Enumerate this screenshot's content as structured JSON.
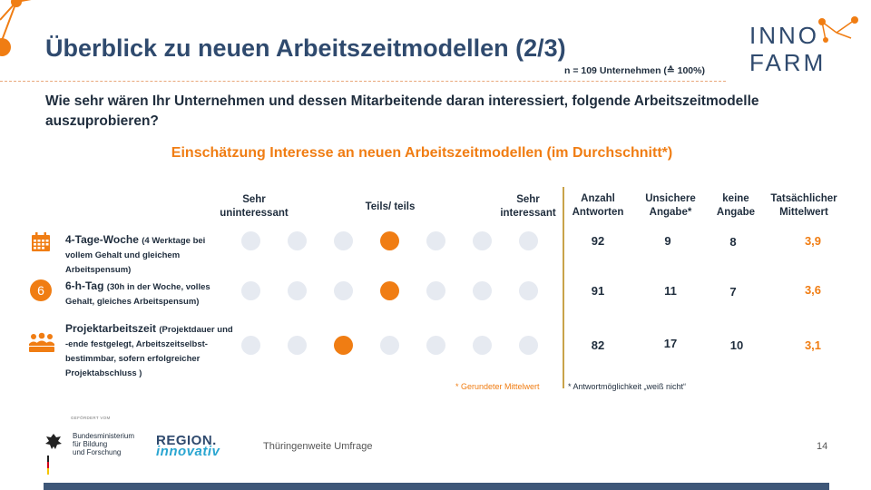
{
  "title": "Überblick zu neuen Arbeitszeitmodellen (2/3)",
  "sample": "n = 109 Unternehmen (≙ 100%)",
  "question": "Wie sehr wären Ihr Unternehmen und dessen Mitarbeitende daran interessiert, folgende Arbeitszeitmodelle auszuprobieren?",
  "subtitle": "Einschätzung Interesse an neuen Arbeitszeitmodellen (im Durchschnitt*)",
  "scale": {
    "left_line1": "Sehr",
    "left_line2": "uninteressant",
    "middle": "Teils/ teils",
    "right_line1": "Sehr",
    "right_line2": "interessant",
    "points": 7
  },
  "columns": {
    "anzahl_line1": "Anzahl",
    "anzahl_line2": "Antworten",
    "unsicher_line1": "Unsichere",
    "unsicher_line2": "Angabe*",
    "keine_line1": "keine",
    "keine_line2": "Angabe",
    "mittel_line1": "Tatsächlicher",
    "mittel_line2": "Mittelwert"
  },
  "rows": [
    {
      "icon": "calendar-icon",
      "name": "4-Tage-Woche",
      "detail_line1": "(4 Werktage bei",
      "detail_line2": "vollem Gehalt und gleichem",
      "detail_line3": "Arbeitspensum)",
      "selected_point": 4,
      "anzahl": "92",
      "unsicher": "9",
      "keine": "8",
      "mittelwert": "3,9"
    },
    {
      "icon": "number-six-icon",
      "icon_text": "6",
      "name": "6-h-Tag",
      "detail_line1": "(30h in der Woche, volles",
      "detail_line2": "Gehalt, gleiches Arbeitspensum)",
      "selected_point": 4,
      "anzahl": "91",
      "unsicher": "11",
      "keine": "7",
      "mittelwert": "3,6"
    },
    {
      "icon": "team-icon",
      "name": "Projektarbeitszeit",
      "detail_line1": "(Projektdauer und",
      "detail_line2": "-ende festgelegt, Arbeitszeitselbst-",
      "detail_line3": "bestimmbar, sofern erfolgreicher",
      "detail_line4": "Projektabschluss )",
      "selected_point": 3,
      "anzahl": "82",
      "unsicher": "17",
      "keine": "10",
      "mittelwert": "3,1"
    }
  ],
  "footnotes": {
    "rounded": "* Gerundeter Mittelwert",
    "answer": "* Antwortmöglichkeit „weiß nicht“"
  },
  "footer": {
    "gefoerdert": "GEFÖRDERT VOM",
    "bmbf_line1": "Bundesministerium",
    "bmbf_line2": "für Bildung",
    "bmbf_line3": "und Forschung",
    "region_line1": "REGION.",
    "region_line2": "innovativ",
    "survey": "Thüringenweite Umfrage",
    "page": "14"
  },
  "logo": {
    "line1": "INNO",
    "line2": "FARM"
  },
  "colors": {
    "accent": "#f07d13",
    "title": "#2f4a6e",
    "dot_empty": "#e6eaf1",
    "divider": "#c9a34a"
  }
}
